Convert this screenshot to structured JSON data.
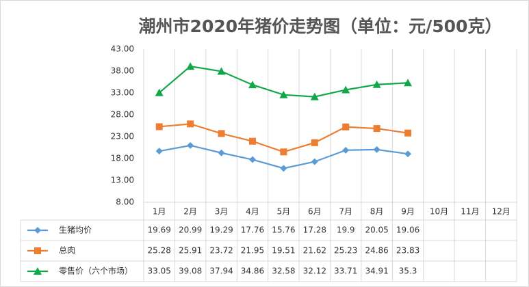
{
  "chart_data": {
    "type": "line",
    "title": "潮州市2020年猪价走势图（单位：元/500克）",
    "categories": [
      "1月",
      "2月",
      "3月",
      "4月",
      "5月",
      "6月",
      "7月",
      "8月",
      "9月",
      "10月",
      "11月",
      "12月"
    ],
    "series": [
      {
        "name": "生猪均价",
        "color": "#5b9bd5",
        "marker": "diamond",
        "values": [
          19.69,
          20.99,
          19.29,
          17.76,
          15.76,
          17.28,
          19.9,
          20.05,
          19.06,
          null,
          null,
          null
        ]
      },
      {
        "name": "总肉",
        "color": "#ed7d31",
        "marker": "square",
        "values": [
          25.28,
          25.91,
          23.72,
          21.95,
          19.51,
          21.62,
          25.23,
          24.86,
          23.83,
          null,
          null,
          null
        ]
      },
      {
        "name": "零售价（六个市场）",
        "color": "#12a84a",
        "marker": "triangle",
        "values": [
          33.05,
          39.08,
          37.94,
          34.86,
          32.58,
          32.12,
          33.71,
          34.91,
          35.3,
          null,
          null,
          null
        ]
      }
    ],
    "ylim": [
      8,
      43
    ],
    "yticks": [
      {
        "value": 8,
        "label": "8.00"
      },
      {
        "value": 13,
        "label": "13.00"
      },
      {
        "value": 18,
        "label": "18.00"
      },
      {
        "value": 23,
        "label": "23.00"
      },
      {
        "value": 28,
        "label": "28.00"
      },
      {
        "value": 33,
        "label": "33.00"
      },
      {
        "value": 38,
        "label": "38.00"
      },
      {
        "value": 43,
        "label": "43.00"
      }
    ],
    "grid": false,
    "data_table": true
  }
}
